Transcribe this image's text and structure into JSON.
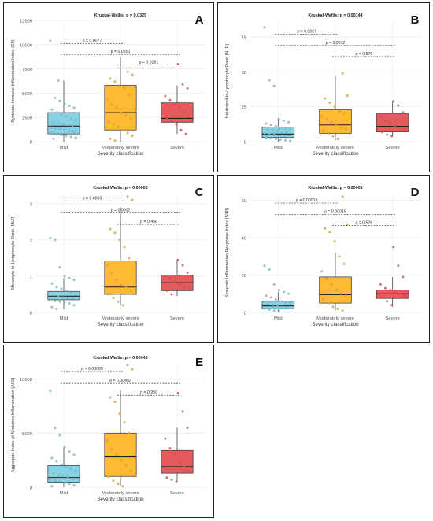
{
  "colors": {
    "mild": "#87d3e6",
    "moderate": "#ffba33",
    "severe": "#e55a5a"
  },
  "chart_data": [
    {
      "panel_id": "pA",
      "letter": "A",
      "type": "box",
      "test_label": "Kruskal-Wallis: p = 0.0325",
      "ylabel": "Systemic Immune Inflammation Index (SII)",
      "xlabel": "Severity classification",
      "categories": [
        "Mild",
        "Moderately severe",
        "Severe"
      ],
      "ylim": [
        0,
        12500
      ],
      "yticks": [
        0,
        2500,
        5000,
        7500,
        10000,
        12500
      ],
      "boxes": [
        {
          "q1": 800,
          "median": 1600,
          "q3": 3000,
          "whisker_low": 0,
          "whisker_high": 6300
        },
        {
          "q1": 1200,
          "median": 3000,
          "q3": 5800,
          "whisker_low": 0,
          "whisker_high": 8700
        },
        {
          "q1": 2000,
          "median": 2400,
          "q3": 4000,
          "whisker_low": 800,
          "whisker_high": 5800
        }
      ],
      "points": [
        [
          10400,
          4500,
          4200,
          3900,
          3700,
          3500,
          3300,
          3000,
          2800,
          2600,
          2400,
          2200,
          2000,
          1900,
          1800,
          1700,
          1600,
          1500,
          1400,
          1300,
          1200,
          1100,
          1000,
          900,
          800,
          700,
          600,
          500,
          400,
          300,
          6300
        ],
        [
          7200,
          6900,
          6500,
          6200,
          5800,
          5500,
          4800,
          4300,
          3800,
          3500,
          3000,
          2700,
          2400,
          2000,
          1800,
          1500,
          1200,
          900,
          600,
          300,
          100
        ],
        [
          8000,
          5900,
          5500,
          4700,
          4300,
          3900,
          3500,
          3000,
          2600,
          2400,
          2200,
          1800,
          1200,
          800
        ]
      ],
      "comparisons": [
        {
          "label": "p = 0.0077",
          "from": 0,
          "to": 1,
          "y": 10100
        },
        {
          "label": "p = 0.0550",
          "from": 0,
          "to": 2,
          "y": 9000
        },
        {
          "label": "p = 0.9291",
          "from": 1,
          "to": 2,
          "y": 7900
        }
      ]
    },
    {
      "panel_id": "pB",
      "letter": "B",
      "type": "box",
      "test_label": "Kruskal-Wallis: p = 0.00144",
      "ylabel": "Neutrophil-to-Lymphocyte Ratio (NLR)",
      "xlabel": "Severity classification",
      "categories": [
        "Mild",
        "Moderately severe",
        "Severe"
      ],
      "ylim": [
        0,
        87
      ],
      "yticks": [
        0,
        25,
        50,
        75
      ],
      "boxes": [
        {
          "q1": 3,
          "median": 5.5,
          "q3": 10.5,
          "whisker_low": 0,
          "whisker_high": 17
        },
        {
          "q1": 6,
          "median": 12,
          "q3": 23,
          "whisker_low": 1,
          "whisker_high": 47
        },
        {
          "q1": 7,
          "median": 11,
          "q3": 20,
          "whisker_low": 4,
          "whisker_high": 29
        }
      ],
      "points": [
        [
          82,
          44,
          40,
          16,
          15,
          14,
          13,
          12,
          11,
          10,
          9.5,
          9,
          8.5,
          8,
          7.5,
          7,
          6.5,
          6,
          5.5,
          5,
          4.5,
          4,
          3.5,
          3,
          2.5,
          2,
          1.5,
          1,
          0.5
        ],
        [
          49,
          33,
          31,
          28,
          25,
          22,
          20,
          18,
          16,
          14,
          12,
          10,
          9,
          8,
          6,
          4,
          2
        ],
        [
          29,
          26,
          21,
          18,
          15,
          13,
          11,
          10,
          9,
          7,
          5,
          4
        ]
      ],
      "comparisons": [
        {
          "label": "p = 0.0027",
          "from": 0,
          "to": 1,
          "y": 77
        },
        {
          "label": "p = 0.0072",
          "from": 0,
          "to": 2,
          "y": 69
        },
        {
          "label": "p = 0.876",
          "from": 1,
          "to": 2,
          "y": 61
        }
      ]
    },
    {
      "panel_id": "pC",
      "letter": "C",
      "type": "box",
      "test_label": "Kruskal-Wallis: p = 0.00002",
      "ylabel": "Monocyte-to-Lymphocyte Ratio (MLR)",
      "xlabel": "Severity classification",
      "categories": [
        "Mild",
        "Moderately severe",
        "Severe"
      ],
      "ylim": [
        0,
        3.3
      ],
      "yticks": [
        0,
        1,
        2,
        3
      ],
      "boxes": [
        {
          "q1": 0.35,
          "median": 0.45,
          "q3": 0.58,
          "whisker_low": 0.1,
          "whisker_high": 0.95
        },
        {
          "q1": 0.5,
          "median": 0.7,
          "q3": 1.42,
          "whisker_low": 0.2,
          "whisker_high": 2.9
        },
        {
          "q1": 0.6,
          "median": 0.82,
          "q3": 1.03,
          "whisker_low": 0.45,
          "whisker_high": 1.45
        }
      ],
      "points": [
        [
          2.05,
          2.0,
          1.25,
          1.0,
          0.95,
          0.9,
          0.8,
          0.7,
          0.65,
          0.6,
          0.55,
          0.5,
          0.48,
          0.45,
          0.42,
          0.4,
          0.38,
          0.35,
          0.32,
          0.3,
          0.28,
          0.25,
          0.2,
          0.15,
          0.1
        ],
        [
          3.2,
          3.1,
          2.3,
          2.2,
          2.0,
          1.8,
          1.5,
          1.3,
          1.1,
          0.9,
          0.75,
          0.7,
          0.6,
          0.5,
          0.4,
          0.3,
          0.2
        ],
        [
          1.45,
          1.3,
          1.1,
          1.0,
          0.95,
          0.85,
          0.8,
          0.7,
          0.65,
          0.6,
          0.5
        ]
      ],
      "comparisons": [
        {
          "label": "p = 0.0003",
          "from": 0,
          "to": 1,
          "y": 3.07
        },
        {
          "label": "p = 0.0002",
          "from": 0,
          "to": 2,
          "y": 2.75
        },
        {
          "label": "p = 0.456",
          "from": 1,
          "to": 2,
          "y": 2.43
        }
      ]
    },
    {
      "panel_id": "pD",
      "letter": "D",
      "type": "box",
      "test_label": "Kruskal-Wallis: p = 0.00001",
      "ylabel": "Systemic Inflammation Response Index (SIRI)",
      "xlabel": "Severity classification",
      "categories": [
        "Mild",
        "Moderately severe",
        "Severe"
      ],
      "ylim": [
        0,
        64
      ],
      "yticks": [
        0,
        20,
        40,
        60
      ],
      "boxes": [
        {
          "q1": 2,
          "median": 3.5,
          "q3": 6,
          "whisker_low": 0,
          "whisker_high": 11
        },
        {
          "q1": 5,
          "median": 9.5,
          "q3": 19,
          "whisker_low": 1,
          "whisker_high": 32
        },
        {
          "q1": 7.5,
          "median": 10,
          "q3": 12,
          "whisker_low": 3,
          "whisker_high": 19
        }
      ],
      "points": [
        [
          25,
          23,
          15,
          12,
          11,
          10,
          9,
          8,
          7,
          6,
          5.5,
          5,
          4.5,
          4,
          3.5,
          3,
          2.5,
          2,
          1.5,
          1,
          0.5
        ],
        [
          62,
          47,
          45,
          43,
          38,
          30,
          26,
          22,
          18,
          15,
          12,
          10,
          9,
          7,
          5,
          3,
          2,
          1
        ],
        [
          35,
          25,
          19,
          15,
          13,
          12,
          11,
          10,
          9,
          8,
          6,
          4
        ]
      ],
      "comparisons": [
        {
          "label": "p = 0.00019",
          "from": 0,
          "to": 1,
          "y": 58.5
        },
        {
          "label": "p = 0.00015",
          "from": 0,
          "to": 2,
          "y": 52.5
        },
        {
          "label": "p = 0.526",
          "from": 1,
          "to": 2,
          "y": 46.5
        }
      ]
    },
    {
      "panel_id": "pE",
      "letter": "E",
      "type": "box",
      "test_label": "Kruskal-Wallis: p = 0.00048",
      "ylabel": "Aggregate Index of Systemic Inflammation (AISI)",
      "xlabel": "Severity classification",
      "categories": [
        "Mild",
        "Moderately severe",
        "Severe"
      ],
      "ylim": [
        0,
        11500
      ],
      "yticks": [
        0,
        5000,
        10000
      ],
      "boxes": [
        {
          "q1": 400,
          "median": 900,
          "q3": 2000,
          "whisker_low": 0,
          "whisker_high": 3700
        },
        {
          "q1": 1000,
          "median": 2800,
          "q3": 5000,
          "whisker_low": 100,
          "whisker_high": 9000
        },
        {
          "q1": 1300,
          "median": 1900,
          "q3": 3400,
          "whisker_low": 500,
          "whisker_high": 5500
        }
      ],
      "points": [
        [
          8900,
          5500,
          4800,
          3700,
          3300,
          3000,
          2700,
          2400,
          2100,
          1900,
          1700,
          1500,
          1300,
          1100,
          1000,
          900,
          800,
          700,
          600,
          500,
          400,
          300,
          200,
          100
        ],
        [
          11300,
          10900,
          8300,
          7900,
          6800,
          6000,
          5000,
          4300,
          3500,
          3000,
          2500,
          2000,
          1500,
          1000,
          600,
          300,
          100
        ],
        [
          8700,
          7000,
          5500,
          4500,
          3600,
          3000,
          2200,
          1900,
          1400,
          900,
          700,
          500
        ]
      ],
      "comparisons": [
        {
          "label": "p = 0.00089",
          "from": 0,
          "to": 1,
          "y": 10700
        },
        {
          "label": "p = 0.00492",
          "from": 0,
          "to": 2,
          "y": 9600
        },
        {
          "label": "p = 0.950",
          "from": 1,
          "to": 2,
          "y": 8500
        }
      ]
    }
  ]
}
